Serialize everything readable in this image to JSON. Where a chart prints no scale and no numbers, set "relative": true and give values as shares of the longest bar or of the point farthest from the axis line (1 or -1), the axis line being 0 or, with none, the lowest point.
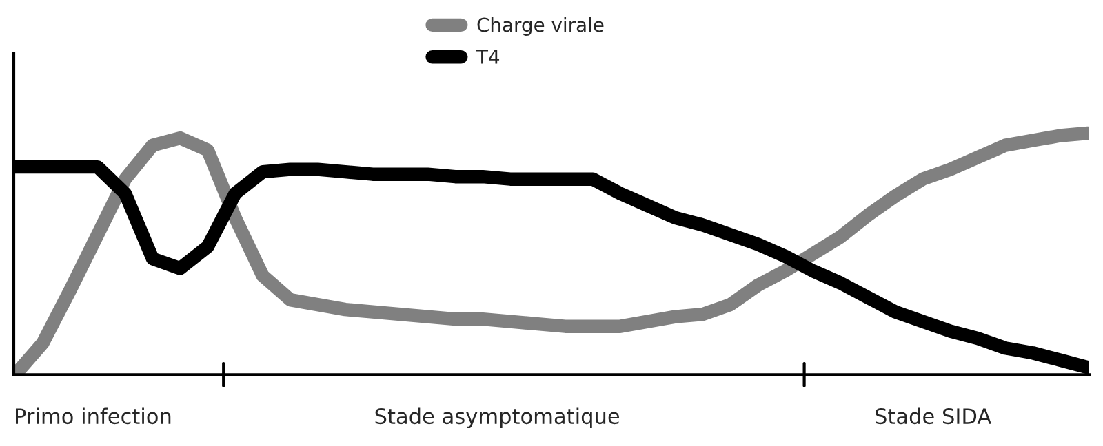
{
  "chart_data": {
    "type": "line",
    "relative": true,
    "legend": "top",
    "marker": "none",
    "line_style": "solid",
    "categories": [
      null,
      null,
      null,
      null,
      null,
      null,
      null,
      null,
      null,
      null,
      null,
      null,
      null,
      null,
      null,
      null,
      null,
      null,
      null,
      null,
      null,
      null,
      null,
      null,
      null,
      null,
      null,
      null,
      null,
      null,
      null,
      null,
      null,
      null,
      null,
      null,
      null,
      null,
      null,
      null
    ],
    "series": [
      {
        "name": "Charge virale",
        "color": "#808080",
        "values": [
          0,
          0.13,
          0.35,
          0.58,
          0.81,
          0.95,
          0.98,
          0.93,
          0.65,
          0.41,
          0.31,
          0.29,
          0.27,
          0.26,
          0.25,
          0.24,
          0.23,
          0.23,
          0.22,
          0.21,
          0.2,
          0.2,
          0.2,
          0.22,
          0.24,
          0.25,
          0.29,
          0.37,
          0.43,
          0.5,
          0.57,
          0.66,
          0.74,
          0.81,
          0.85,
          0.9,
          0.95,
          0.97,
          0.99,
          1
        ]
      },
      {
        "name": "T4",
        "color": "#000000",
        "values": [
          0.86,
          0.86,
          0.86,
          0.86,
          0.75,
          0.48,
          0.44,
          0.53,
          0.75,
          0.84,
          0.85,
          0.85,
          0.84,
          0.83,
          0.83,
          0.83,
          0.82,
          0.82,
          0.81,
          0.81,
          0.81,
          0.81,
          0.75,
          0.7,
          0.65,
          0.62,
          0.58,
          0.54,
          0.49,
          0.43,
          0.38,
          0.32,
          0.26,
          0.22,
          0.18,
          0.15,
          0.11,
          0.09,
          0.06,
          0.03
        ]
      }
    ],
    "annotations": [
      "Primo infection",
      "Stade asymptomatique",
      "Stade SIDA"
    ]
  }
}
